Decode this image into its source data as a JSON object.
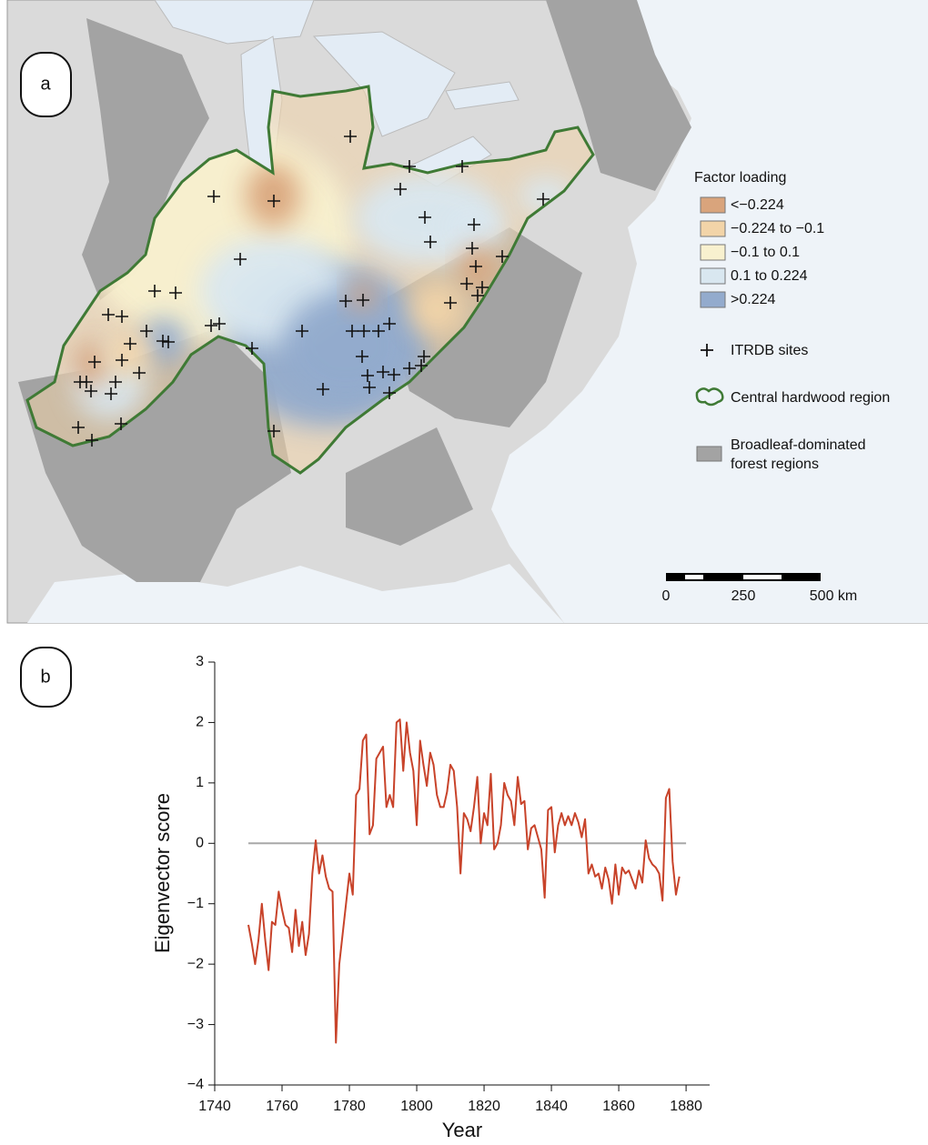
{
  "map": {
    "panel_label": "a",
    "legend": {
      "title": "Factor loading",
      "items": [
        {
          "label": "<−0.224",
          "color": "#d9a47c"
        },
        {
          "label": "−0.224 to −0.1",
          "color": "#f2d4a8"
        },
        {
          "label": "−0.1 to 0.1",
          "color": "#f8f1cf"
        },
        {
          "label": "0.1 to 0.224",
          "color": "#d9e7f0"
        },
        {
          "label": ">0.224",
          "color": "#93abcd"
        }
      ],
      "sites_label": "ITRDB sites",
      "region_label": "Central hardwood region",
      "region_color": "#3f7a35",
      "forest_label": [
        "Broadleaf-dominated",
        "forest regions"
      ],
      "forest_color": "#a3a3a3"
    },
    "scale_bar": {
      "labels": [
        "0",
        "250",
        "500 km"
      ]
    }
  },
  "chart_data": {
    "type": "line",
    "panel_label": "b",
    "x_label": "Year",
    "y_label": "Eigenvector score",
    "x": [
      1750,
      1751,
      1752,
      1753,
      1754,
      1755,
      1756,
      1757,
      1758,
      1759,
      1760,
      1761,
      1762,
      1763,
      1764,
      1765,
      1766,
      1767,
      1768,
      1769,
      1770,
      1771,
      1772,
      1773,
      1774,
      1775,
      1776,
      1777,
      1778,
      1779,
      1780,
      1781,
      1782,
      1783,
      1784,
      1785,
      1786,
      1787,
      1788,
      1789,
      1790,
      1791,
      1792,
      1793,
      1794,
      1795,
      1796,
      1797,
      1798,
      1799,
      1800,
      1801,
      1802,
      1803,
      1804,
      1805,
      1806,
      1807,
      1808,
      1809,
      1810,
      1811,
      1812,
      1813,
      1814,
      1815,
      1816,
      1817,
      1818,
      1819,
      1820,
      1821,
      1822,
      1823,
      1824,
      1825,
      1826,
      1827,
      1828,
      1829,
      1830,
      1831,
      1832,
      1833,
      1834,
      1835,
      1836,
      1837,
      1838,
      1839,
      1840,
      1841,
      1842,
      1843,
      1844,
      1845,
      1846,
      1847,
      1848,
      1849,
      1850,
      1851,
      1852,
      1853,
      1854,
      1855,
      1856,
      1857,
      1858,
      1859,
      1860,
      1861,
      1862,
      1863,
      1864,
      1865,
      1866,
      1867,
      1868,
      1869,
      1870,
      1871,
      1872,
      1873,
      1874,
      1875,
      1876,
      1877,
      1878
    ],
    "series": [
      {
        "name": "Eigenvector score",
        "color": "#c8432a",
        "values": [
          -1.35,
          -1.65,
          -2.0,
          -1.6,
          -1.0,
          -1.6,
          -2.1,
          -1.3,
          -1.35,
          -0.8,
          -1.1,
          -1.35,
          -1.4,
          -1.8,
          -1.1,
          -1.7,
          -1.3,
          -1.85,
          -1.5,
          -0.5,
          0.05,
          -0.5,
          -0.2,
          -0.55,
          -0.75,
          -0.8,
          -3.3,
          -2.0,
          -1.5,
          -1.0,
          -0.5,
          -0.85,
          0.8,
          0.9,
          1.7,
          1.8,
          0.15,
          0.3,
          1.4,
          1.5,
          1.6,
          0.6,
          0.8,
          0.6,
          2.0,
          2.05,
          1.2,
          2.0,
          1.5,
          1.2,
          0.3,
          1.7,
          1.3,
          0.95,
          1.5,
          1.3,
          0.8,
          0.6,
          0.6,
          0.85,
          1.3,
          1.2,
          0.6,
          -0.5,
          0.5,
          0.4,
          0.2,
          0.6,
          1.1,
          0.0,
          0.5,
          0.3,
          1.15,
          -0.1,
          0.0,
          0.3,
          1.0,
          0.8,
          0.7,
          0.3,
          1.1,
          0.65,
          0.7,
          -0.1,
          0.25,
          0.3,
          0.1,
          -0.1,
          -0.9,
          0.55,
          0.6,
          -0.15,
          0.3,
          0.5,
          0.3,
          0.45,
          0.3,
          0.5,
          0.35,
          0.1,
          0.4,
          -0.5,
          -0.35,
          -0.55,
          -0.5,
          -0.75,
          -0.4,
          -0.6,
          -1.0,
          -0.35,
          -0.85,
          -0.4,
          -0.5,
          -0.45,
          -0.6,
          -0.75,
          -0.45,
          -0.65,
          0.05,
          -0.25,
          -0.35,
          -0.4,
          -0.5,
          -0.95,
          0.75,
          0.9,
          -0.3,
          -0.85,
          -0.55
        ]
      }
    ],
    "zero_line_color": "#a8a8a8",
    "xlim": [
      1740,
      1887
    ],
    "xticks": [
      1740,
      1760,
      1780,
      1800,
      1820,
      1840,
      1860,
      1880
    ],
    "ylim": [
      -4,
      3
    ],
    "yticks": [
      {
        "value": -4,
        "label": "−4"
      },
      {
        "value": -3,
        "label": "−3"
      },
      {
        "value": -2,
        "label": "−2"
      },
      {
        "value": -1,
        "label": "−1"
      },
      0,
      1,
      2,
      3
    ]
  }
}
